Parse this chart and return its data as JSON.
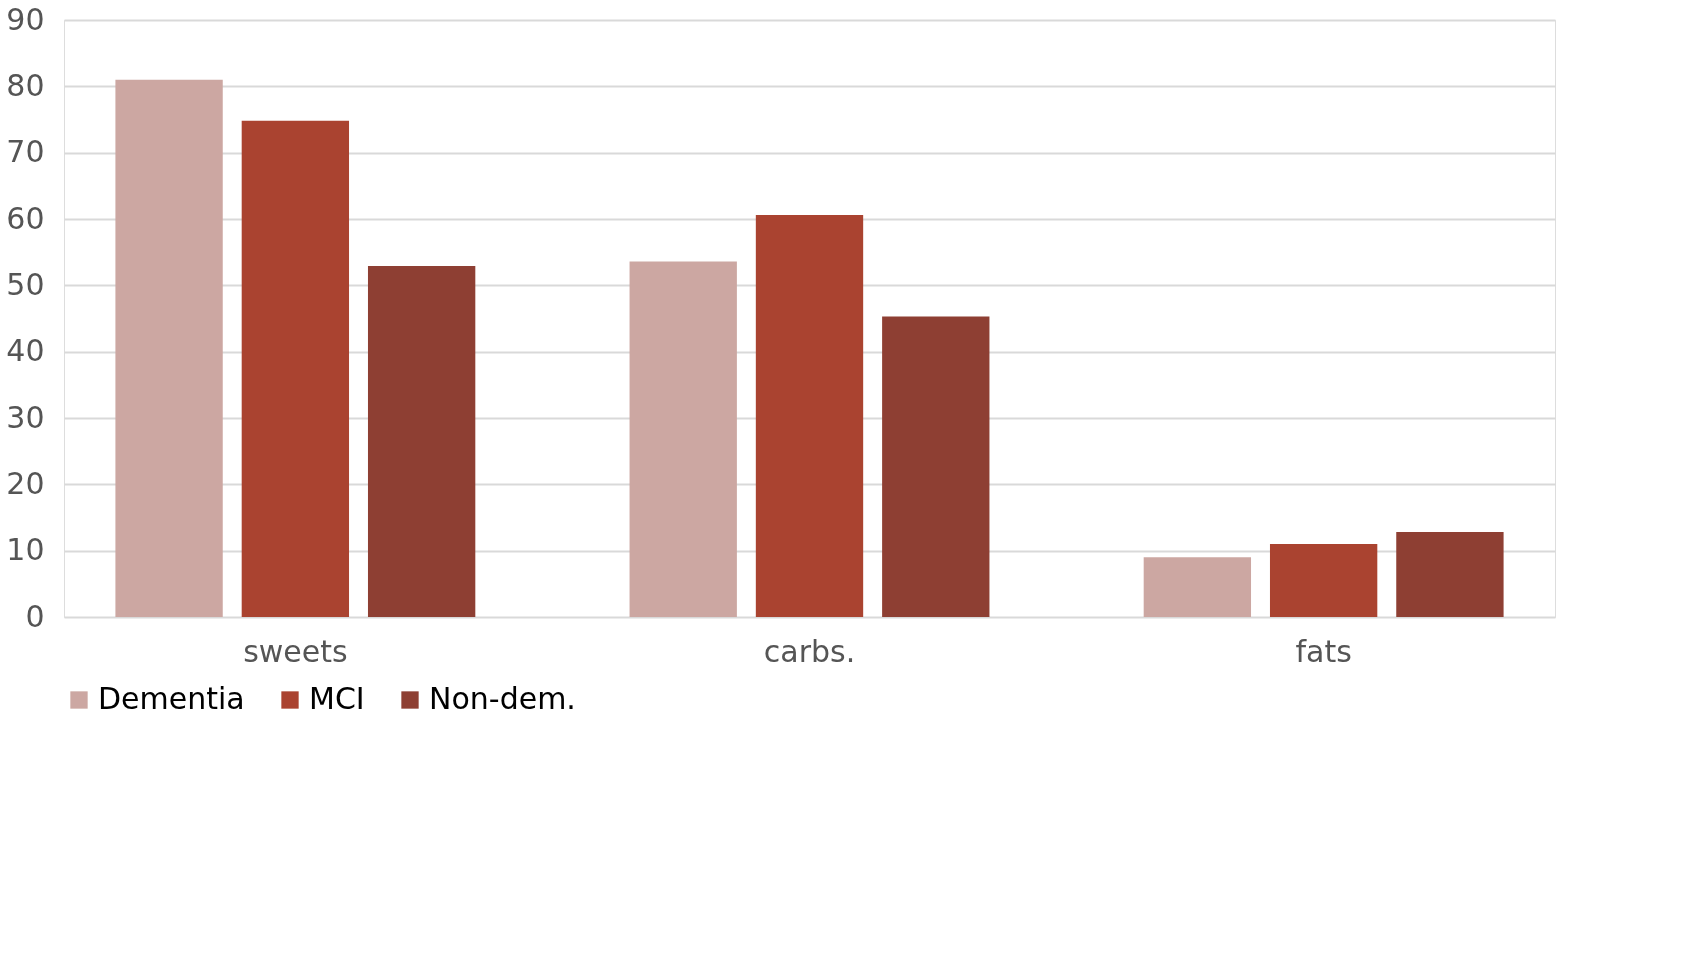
{
  "chart_data": {
    "type": "bar",
    "categories": [
      "sweets",
      "carbs.",
      "fats"
    ],
    "series": [
      {
        "name": "Dementia",
        "color": "#cca7a2",
        "values": [
          81,
          53.6,
          9
        ]
      },
      {
        "name": "MCI",
        "color": "#aa4330",
        "values": [
          74.8,
          60.6,
          11
        ]
      },
      {
        "name": "Non-dem.",
        "color": "#8e3f33",
        "values": [
          52.9,
          45.3,
          12.8
        ]
      }
    ],
    "ylim": [
      0,
      90
    ],
    "yticks": [
      0,
      10,
      20,
      30,
      40,
      50,
      60,
      70,
      80,
      90
    ],
    "grid": "y",
    "legend": "bottom"
  }
}
